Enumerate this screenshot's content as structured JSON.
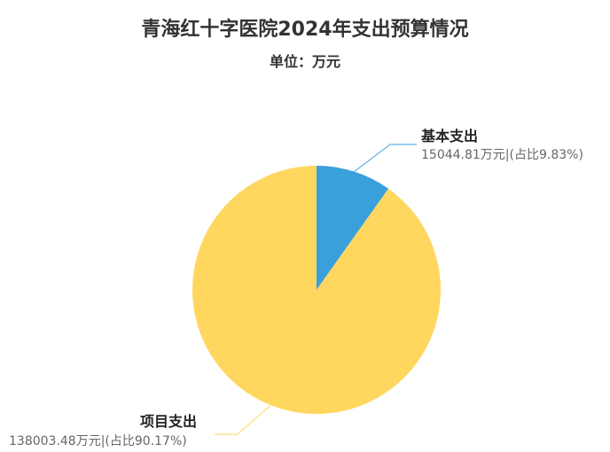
{
  "chart_data": {
    "type": "pie",
    "title": "青海红十字医院2024年支出预算情况",
    "subtitle": "单位：万元",
    "slices": [
      {
        "name": "基本支出",
        "value": 15044.81,
        "percent": 9.83,
        "value_label": "15044.81万元|(占比9.83%)",
        "color": "#3aa0dc"
      },
      {
        "name": "项目支出",
        "value": 138003.48,
        "percent": 90.17,
        "value_label": "138003.48万元|(占比90.17%)",
        "color": "#ffd75e"
      }
    ]
  }
}
